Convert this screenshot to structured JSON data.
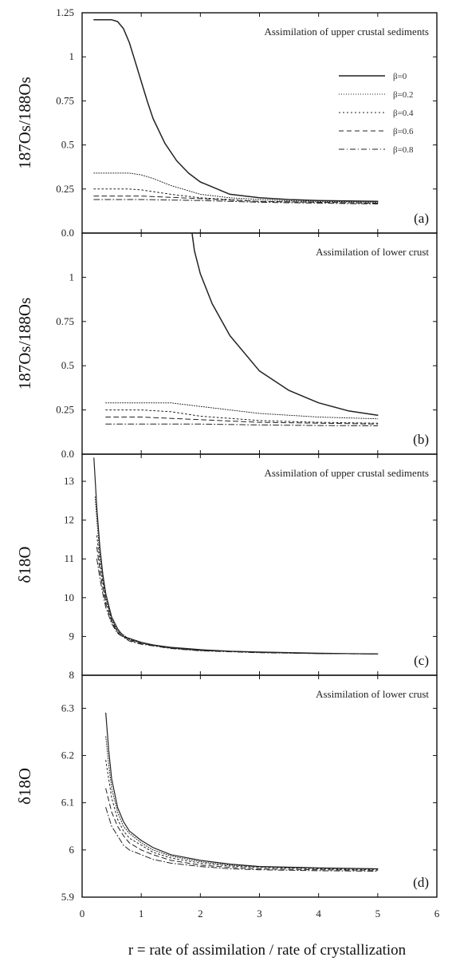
{
  "chart_data": [
    {
      "id": "a",
      "type": "line",
      "annotation": "Assimilation of upper crustal sediments",
      "panel_label": "(a)",
      "ylabel": "187Os/188Os",
      "ylim": [
        0.0,
        1.25
      ],
      "yticks": [
        0.0,
        0.25,
        0.5,
        0.75,
        1,
        1.25
      ],
      "ytick_labels": [
        "0.0",
        "0.25",
        "0.5",
        "0.75",
        "1",
        "1.25"
      ],
      "xlim": [
        0,
        6
      ],
      "legend": {
        "position": "top-right",
        "entries": [
          {
            "label": "β=0",
            "dash": ""
          },
          {
            "label": "β=0.2",
            "dash": "1,2"
          },
          {
            "label": "β=0.4",
            "dash": "2,3"
          },
          {
            "label": "β=0.6",
            "dash": "6,4"
          },
          {
            "label": "β=0.8",
            "dash": "7,3,1,3"
          }
        ]
      },
      "series": [
        {
          "name": "β=0",
          "dash": "",
          "width": 1.5,
          "x": [
            0.2,
            0.5,
            0.6,
            0.7,
            0.8,
            0.9,
            1.0,
            1.1,
            1.2,
            1.4,
            1.6,
            1.8,
            2.0,
            2.5,
            3.0,
            3.5,
            4.0,
            4.5,
            5.0
          ],
          "y": [
            1.21,
            1.21,
            1.2,
            1.16,
            1.08,
            0.97,
            0.86,
            0.75,
            0.65,
            0.51,
            0.41,
            0.34,
            0.29,
            0.22,
            0.2,
            0.19,
            0.185,
            0.182,
            0.18
          ]
        },
        {
          "name": "β=0.2",
          "dash": "1,2",
          "width": 1,
          "x": [
            0.2,
            0.8,
            1.0,
            1.2,
            1.5,
            2.0,
            2.5,
            3.0,
            3.5,
            4.0,
            4.5,
            5.0
          ],
          "y": [
            0.34,
            0.34,
            0.33,
            0.31,
            0.27,
            0.22,
            0.2,
            0.19,
            0.183,
            0.18,
            0.178,
            0.175
          ]
        },
        {
          "name": "β=0.4",
          "dash": "2,3",
          "width": 1,
          "x": [
            0.2,
            0.8,
            1.0,
            1.5,
            2.0,
            2.5,
            3.0,
            4.0,
            5.0
          ],
          "y": [
            0.25,
            0.25,
            0.245,
            0.22,
            0.2,
            0.19,
            0.18,
            0.175,
            0.17
          ]
        },
        {
          "name": "β=0.6",
          "dash": "6,4",
          "width": 1,
          "x": [
            0.2,
            1.0,
            2.0,
            3.0,
            4.0,
            5.0
          ],
          "y": [
            0.21,
            0.21,
            0.195,
            0.18,
            0.175,
            0.17
          ]
        },
        {
          "name": "β=0.8",
          "dash": "7,3,1,3",
          "width": 1,
          "x": [
            0.2,
            1.0,
            2.0,
            3.0,
            4.0,
            5.0
          ],
          "y": [
            0.19,
            0.19,
            0.185,
            0.175,
            0.17,
            0.165
          ]
        }
      ]
    },
    {
      "id": "b",
      "type": "line",
      "annotation": "Assimilation of lower crust",
      "panel_label": "(b)",
      "ylabel": "187Os/188Os",
      "ylim": [
        0.0,
        1.25
      ],
      "yticks": [
        0.0,
        0.25,
        0.5,
        0.75,
        1
      ],
      "ytick_labels": [
        "0.0",
        "0.25",
        "0.5",
        "0.75",
        "1"
      ],
      "xlim": [
        0,
        6
      ],
      "series": [
        {
          "name": "β=0",
          "dash": "",
          "width": 1.5,
          "x": [
            1.86,
            1.9,
            2.0,
            2.2,
            2.5,
            3.0,
            3.5,
            4.0,
            4.5,
            5.0
          ],
          "y": [
            1.25,
            1.15,
            1.02,
            0.85,
            0.67,
            0.47,
            0.36,
            0.29,
            0.245,
            0.22
          ]
        },
        {
          "name": "β=0.2",
          "dash": "1,2",
          "width": 1,
          "x": [
            0.4,
            1.0,
            1.5,
            2.0,
            2.5,
            3.0,
            4.0,
            5.0
          ],
          "y": [
            0.29,
            0.29,
            0.29,
            0.27,
            0.25,
            0.23,
            0.21,
            0.2
          ]
        },
        {
          "name": "β=0.4",
          "dash": "2,3",
          "width": 1,
          "x": [
            0.4,
            1.0,
            1.5,
            2.0,
            3.0,
            4.0,
            5.0
          ],
          "y": [
            0.25,
            0.25,
            0.24,
            0.215,
            0.19,
            0.18,
            0.175
          ]
        },
        {
          "name": "β=0.6",
          "dash": "6,4",
          "width": 1,
          "x": [
            0.4,
            1.0,
            2.0,
            3.0,
            4.0,
            5.0
          ],
          "y": [
            0.21,
            0.21,
            0.195,
            0.18,
            0.175,
            0.17
          ]
        },
        {
          "name": "β=0.8",
          "dash": "7,3,1,3",
          "width": 1,
          "x": [
            0.4,
            1.0,
            2.0,
            3.0,
            4.0,
            5.0
          ],
          "y": [
            0.17,
            0.17,
            0.17,
            0.165,
            0.162,
            0.16
          ]
        }
      ]
    },
    {
      "id": "c",
      "type": "line",
      "annotation": "Assimilation of upper crustal sediments",
      "panel_label": "(c)",
      "ylabel": "δ18O",
      "ylim": [
        8,
        13.7
      ],
      "yticks": [
        8,
        9,
        10,
        11,
        12,
        13
      ],
      "ytick_labels": [
        "8",
        "9",
        "10",
        "11",
        "12",
        "13"
      ],
      "xlim": [
        0,
        6
      ],
      "series": [
        {
          "name": "β=0",
          "dash": "",
          "width": 1.2,
          "x": [
            0.2,
            0.25,
            0.3,
            0.35,
            0.4,
            0.5,
            0.6,
            0.7,
            0.8,
            1.0,
            1.2,
            1.5,
            2.0,
            2.5,
            3.0,
            4.0,
            5.0
          ],
          "y": [
            13.6,
            12.3,
            11.3,
            10.6,
            10.1,
            9.5,
            9.2,
            9.0,
            8.95,
            8.85,
            8.78,
            8.72,
            8.66,
            8.62,
            8.6,
            8.57,
            8.55
          ]
        },
        {
          "name": "β=0.2",
          "dash": "1,2",
          "width": 1,
          "x": [
            0.22,
            0.25,
            0.3,
            0.35,
            0.4,
            0.5,
            0.6,
            0.8,
            1.0,
            1.5,
            2.0,
            3.0,
            4.0,
            5.0
          ],
          "y": [
            12.6,
            12.0,
            11.1,
            10.5,
            10.0,
            9.45,
            9.15,
            8.93,
            8.84,
            8.71,
            8.65,
            8.59,
            8.56,
            8.55
          ]
        },
        {
          "name": "β=0.4",
          "dash": "2,3",
          "width": 1,
          "x": [
            0.25,
            0.3,
            0.35,
            0.4,
            0.5,
            0.6,
            0.8,
            1.0,
            1.5,
            2.0,
            3.0,
            4.0,
            5.0
          ],
          "y": [
            11.6,
            10.9,
            10.4,
            9.95,
            9.42,
            9.13,
            8.92,
            8.83,
            8.7,
            8.64,
            8.59,
            8.56,
            8.55
          ]
        },
        {
          "name": "β=0.6",
          "dash": "6,4",
          "width": 1,
          "x": [
            0.25,
            0.3,
            0.35,
            0.4,
            0.5,
            0.6,
            0.8,
            1.0,
            1.5,
            2.0,
            3.0,
            4.0,
            5.0
          ],
          "y": [
            11.3,
            10.7,
            10.25,
            9.85,
            9.38,
            9.1,
            8.9,
            8.82,
            8.7,
            8.64,
            8.59,
            8.56,
            8.55
          ]
        },
        {
          "name": "β=0.8",
          "dash": "7,3,1,3",
          "width": 1,
          "x": [
            0.25,
            0.3,
            0.35,
            0.4,
            0.5,
            0.6,
            0.8,
            1.0,
            1.5,
            2.0,
            3.0,
            4.0,
            5.0
          ],
          "y": [
            11.0,
            10.5,
            10.1,
            9.75,
            9.33,
            9.08,
            8.88,
            8.8,
            8.69,
            8.63,
            8.58,
            8.56,
            8.55
          ]
        }
      ]
    },
    {
      "id": "d",
      "type": "line",
      "annotation": "Assimilation of lower crust",
      "panel_label": "(d)",
      "ylabel": "δ18O",
      "ylim": [
        5.9,
        6.37
      ],
      "yticks": [
        5.9,
        6,
        6.1,
        6.2,
        6.3
      ],
      "ytick_labels": [
        "5.9",
        "6",
        "6.1",
        "6.2",
        "6.3"
      ],
      "xlim": [
        0,
        6
      ],
      "xticks": [
        0,
        1,
        2,
        3,
        4,
        5,
        6
      ],
      "xtick_labels": [
        "0",
        "1",
        "2",
        "3",
        "4",
        "5",
        "6"
      ],
      "xlabel": "r = rate of assimilation / rate of crystallization",
      "series": [
        {
          "name": "β=0",
          "dash": "",
          "width": 1.2,
          "x": [
            0.4,
            0.45,
            0.5,
            0.6,
            0.7,
            0.8,
            1.0,
            1.2,
            1.5,
            2.0,
            2.5,
            3.0,
            4.0,
            5.0
          ],
          "y": [
            6.29,
            6.21,
            6.15,
            6.09,
            6.06,
            6.04,
            6.02,
            6.005,
            5.99,
            5.978,
            5.97,
            5.965,
            5.962,
            5.96
          ]
        },
        {
          "name": "β=0.2",
          "dash": "1,2",
          "width": 1,
          "x": [
            0.4,
            0.45,
            0.5,
            0.6,
            0.7,
            0.8,
            1.0,
            1.2,
            1.5,
            2.0,
            2.5,
            3.0,
            4.0,
            5.0
          ],
          "y": [
            6.24,
            6.18,
            6.13,
            6.08,
            6.05,
            6.035,
            6.015,
            6.0,
            5.987,
            5.975,
            5.968,
            5.964,
            5.961,
            5.96
          ]
        },
        {
          "name": "β=0.4",
          "dash": "2,3",
          "width": 1,
          "x": [
            0.4,
            0.45,
            0.5,
            0.6,
            0.7,
            0.8,
            1.0,
            1.2,
            1.5,
            2.0,
            2.5,
            3.0,
            4.0,
            5.0
          ],
          "y": [
            6.19,
            6.15,
            6.11,
            6.065,
            6.04,
            6.025,
            6.01,
            5.995,
            5.983,
            5.972,
            5.966,
            5.963,
            5.96,
            5.958
          ]
        },
        {
          "name": "β=0.6",
          "dash": "6,4",
          "width": 1,
          "x": [
            0.4,
            0.5,
            0.6,
            0.7,
            0.8,
            1.0,
            1.2,
            1.5,
            2.0,
            2.5,
            3.0,
            4.0,
            5.0
          ],
          "y": [
            6.13,
            6.08,
            6.05,
            6.03,
            6.015,
            6.0,
            5.99,
            5.978,
            5.968,
            5.963,
            5.96,
            5.958,
            5.957
          ]
        },
        {
          "name": "β=0.8",
          "dash": "7,3,1,3",
          "width": 1,
          "x": [
            0.4,
            0.5,
            0.6,
            0.7,
            0.8,
            1.0,
            1.2,
            1.5,
            2.0,
            2.5,
            3.0,
            4.0,
            5.0
          ],
          "y": [
            6.09,
            6.05,
            6.03,
            6.01,
            6.0,
            5.99,
            5.98,
            5.972,
            5.965,
            5.96,
            5.958,
            5.956,
            5.955
          ]
        }
      ]
    }
  ]
}
